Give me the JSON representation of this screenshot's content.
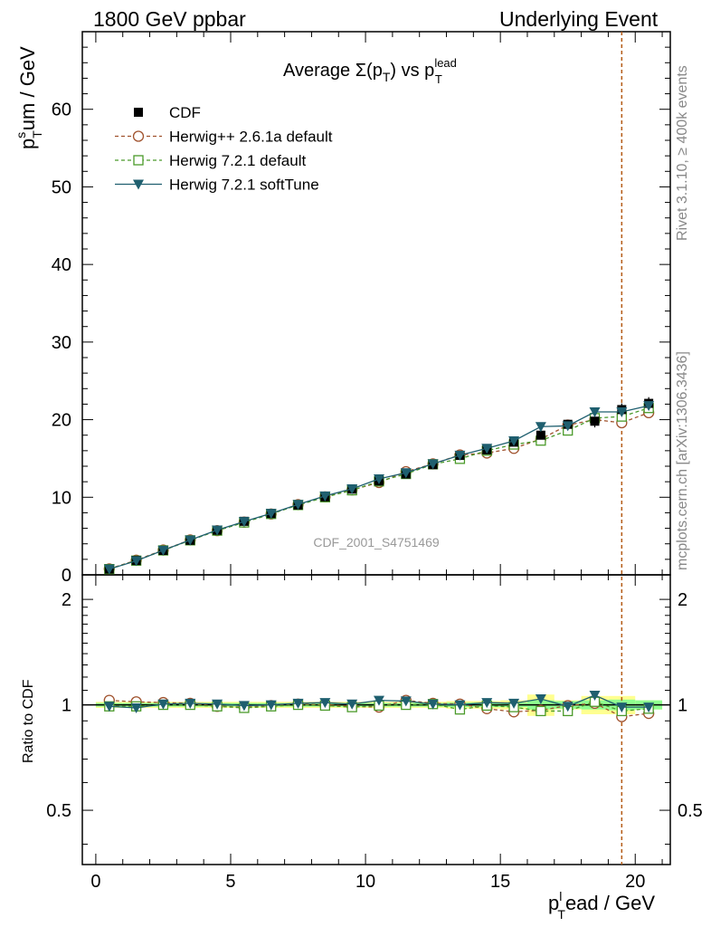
{
  "header": {
    "left": "1800 GeV ppbar",
    "right": "Underlying Event"
  },
  "side": {
    "rivet": "Rivet 3.1.10, ≥ 400k events",
    "mcplots": "mcplots.cern.ch [arXiv:1306.3436]"
  },
  "plot": {
    "title_pre": "Average Σ(p",
    "title_sub1": "T",
    "title_mid": ") vs p",
    "title_sup": "lead",
    "title_sub2": "T",
    "watermark": "CDF_2001_S4751469",
    "ylabel_main": "p",
    "ylabel_sup": "s",
    "ylabel_sub": "T",
    "ylabel_rest": "um / GeV",
    "ylabel_ratio": "Ratio to CDF",
    "xlabel_main": "p",
    "xlabel_sup": "l",
    "xlabel_sub": "T",
    "xlabel_rest": "ead / GeV"
  },
  "colors": {
    "cdf": "#000000",
    "herwigpp": "#a0522d",
    "herwig721": "#4a9a2a",
    "softtune": "#1f5f6f",
    "band_yellow": "#ffff90",
    "band_green": "#90ff90",
    "vline": "#b45a14"
  },
  "chart_data": [
    {
      "type": "line",
      "panel": "main",
      "xlim": [
        -0.5,
        21.3
      ],
      "ylim": [
        0,
        70
      ],
      "xticks": [
        0,
        5,
        10,
        15,
        20
      ],
      "yticks": [
        0,
        10,
        20,
        30,
        40,
        50,
        60
      ],
      "legend_position": "top-left",
      "x": [
        0.5,
        1.5,
        2.5,
        3.5,
        4.5,
        5.5,
        6.5,
        7.5,
        8.5,
        9.5,
        10.5,
        11.5,
        12.5,
        13.5,
        14.5,
        15.5,
        16.5,
        17.5,
        18.5,
        19.5,
        20.5
      ],
      "vline_x": 19.5,
      "series": [
        {
          "name": "CDF",
          "marker": "square-filled",
          "values": [
            0.75,
            1.85,
            3.15,
            4.45,
            5.75,
            6.9,
            7.9,
            9.0,
            10.05,
            11.05,
            12.1,
            13.0,
            14.2,
            15.4,
            16.1,
            17.1,
            18.0,
            19.4,
            19.8,
            21.3,
            22.1
          ],
          "errors": [
            0.1,
            0.15,
            0.15,
            0.2,
            0.2,
            0.2,
            0.2,
            0.2,
            0.25,
            0.25,
            0.25,
            0.3,
            0.3,
            0.3,
            0.35,
            0.35,
            0.5,
            0.5,
            0.8,
            0.8,
            0.8
          ]
        },
        {
          "name": "Herwig++ 2.6.1a default",
          "marker": "circle-open",
          "dashed": true,
          "values": [
            0.77,
            1.89,
            3.2,
            4.5,
            5.7,
            6.8,
            7.85,
            9.05,
            10.05,
            10.95,
            11.9,
            13.3,
            14.3,
            15.45,
            15.7,
            16.3,
            17.5,
            19.3,
            20.0,
            19.6,
            20.9
          ]
        },
        {
          "name": "Herwig 7.2.1 default",
          "marker": "square-open",
          "dashed": true,
          "values": [
            0.74,
            1.83,
            3.15,
            4.45,
            5.7,
            6.75,
            7.85,
            9.0,
            10.0,
            10.9,
            12.05,
            13.0,
            14.25,
            14.95,
            16.0,
            16.8,
            17.3,
            18.6,
            20.2,
            20.4,
            21.5
          ]
        },
        {
          "name": "Herwig 7.2.1 softTune",
          "marker": "triangle-down-filled",
          "values": [
            0.74,
            1.81,
            3.17,
            4.49,
            5.77,
            6.87,
            7.92,
            9.07,
            10.16,
            11.09,
            12.37,
            13.16,
            14.3,
            15.42,
            16.3,
            17.27,
            19.1,
            19.2,
            21.0,
            21.0,
            21.8
          ]
        }
      ]
    },
    {
      "type": "line",
      "panel": "ratio",
      "xlim": [
        -0.5,
        21.3
      ],
      "ylim": [
        0.35,
        2.35
      ],
      "yticks": [
        0.5,
        1,
        2
      ],
      "x": [
        0.5,
        1.5,
        2.5,
        3.5,
        4.5,
        5.5,
        6.5,
        7.5,
        8.5,
        9.5,
        10.5,
        11.5,
        12.5,
        13.5,
        14.5,
        15.5,
        16.5,
        17.5,
        18.5,
        19.5,
        20.5
      ],
      "band_inner": [
        0.012,
        0.012,
        0.012,
        0.012,
        0.012,
        0.012,
        0.012,
        0.012,
        0.012,
        0.012,
        0.012,
        0.012,
        0.012,
        0.015,
        0.015,
        0.015,
        0.03,
        0.025,
        0.03,
        0.035,
        0.03
      ],
      "band_outer": [
        0.02,
        0.02,
        0.02,
        0.02,
        0.02,
        0.02,
        0.02,
        0.02,
        0.02,
        0.02,
        0.02,
        0.02,
        0.02,
        0.025,
        0.025,
        0.03,
        0.07,
        0.03,
        0.06,
        0.06,
        0.03
      ],
      "series": [
        {
          "name": "Herwig++ 2.6.1a default",
          "values": [
            1.03,
            1.02,
            1.015,
            1.01,
            0.99,
            0.985,
            0.995,
            1.005,
            1.0,
            0.99,
            0.985,
            1.03,
            1.01,
            1.005,
            0.975,
            0.955,
            0.965,
            0.995,
            1.01,
            0.925,
            0.945
          ]
        },
        {
          "name": "Herwig 7.2.1 default",
          "values": [
            0.99,
            0.99,
            1.0,
            1.0,
            0.99,
            0.98,
            0.99,
            1.0,
            0.995,
            0.985,
            0.995,
            1.0,
            1.005,
            0.97,
            0.995,
            0.985,
            0.96,
            0.96,
            1.02,
            0.96,
            0.975
          ]
        },
        {
          "name": "Herwig 7.2.1 softTune",
          "values": [
            0.99,
            0.98,
            1.005,
            1.01,
            1.005,
            0.995,
            1.0,
            1.01,
            1.015,
            1.005,
            1.03,
            1.025,
            1.005,
            1.0,
            1.015,
            1.01,
            1.04,
            0.99,
            1.065,
            0.985,
            0.985
          ]
        }
      ]
    }
  ]
}
